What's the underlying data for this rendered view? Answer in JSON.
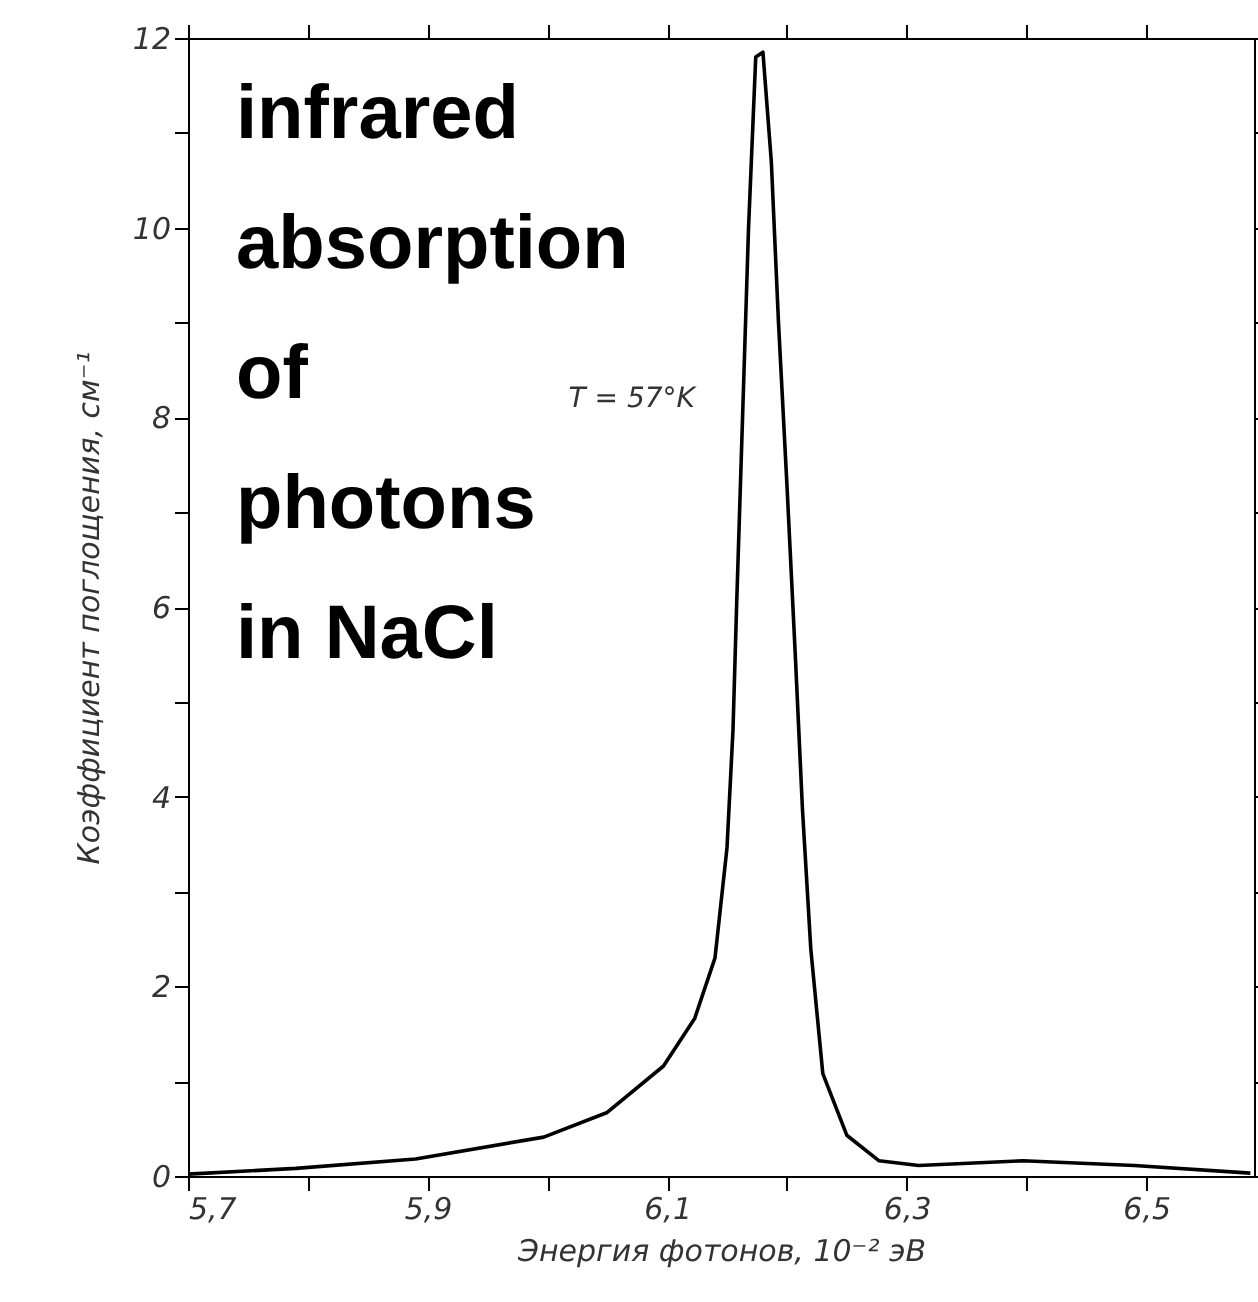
{
  "chart_data": {
    "type": "line",
    "xlabel": "Энергия фотонов, 10⁻² эВ",
    "ylabel": "Коэффициент поглощения, см⁻¹",
    "annotations": [
      "infrared\nabsorption\nof\nphotons\nin NaCl",
      {
        "text": "T = 57°K",
        "x": 6.16,
        "y": 8
      }
    ],
    "x": [
      5.7,
      5.79,
      5.89,
      5.997,
      6.05,
      6.097,
      6.123,
      6.14,
      6.15,
      6.155,
      6.158,
      6.163,
      6.168,
      6.174,
      6.18,
      6.187,
      6.193,
      6.2,
      6.207,
      6.213,
      6.22,
      6.23,
      6.25,
      6.277,
      6.31,
      6.397,
      6.49,
      6.587
    ],
    "series": [
      {
        "color": "#000000",
        "values": [
          0.02,
          0.08,
          0.18,
          0.41,
          0.67,
          1.16,
          1.66,
          2.3,
          3.46,
          4.7,
          6,
          8,
          10,
          11.8,
          11.85,
          10.7,
          9.0,
          7.3,
          5.5,
          3.87,
          2.39,
          1.08,
          0.43,
          0.16,
          0.11,
          0.16,
          0.11,
          0.03
        ]
      }
    ],
    "xlim": [
      5.7,
      6.59
    ],
    "ylim": [
      0,
      12
    ],
    "xticks": [
      {
        "value": 5.7,
        "label": "5,7"
      },
      {
        "value": 5.8,
        "label": null
      },
      {
        "value": 5.9,
        "label": "5,9"
      },
      {
        "value": 6.0,
        "label": null
      },
      {
        "value": 6.1,
        "label": "6,1"
      },
      {
        "value": 6.2,
        "label": null
      },
      {
        "value": 6.3,
        "label": "6,3"
      },
      {
        "value": 6.4,
        "label": null
      },
      {
        "value": 6.5,
        "label": "6,5"
      }
    ],
    "yticks": [
      0,
      {
        "value": 1,
        "label": null
      },
      2,
      {
        "value": 3,
        "label": null
      },
      4,
      {
        "value": 5,
        "label": null
      },
      6,
      {
        "value": 7,
        "label": null
      },
      8,
      {
        "value": 9,
        "label": null
      },
      10,
      {
        "value": 11,
        "label": null
      },
      12
    ],
    "grid": false,
    "marker": "none",
    "line_style": "solid"
  }
}
